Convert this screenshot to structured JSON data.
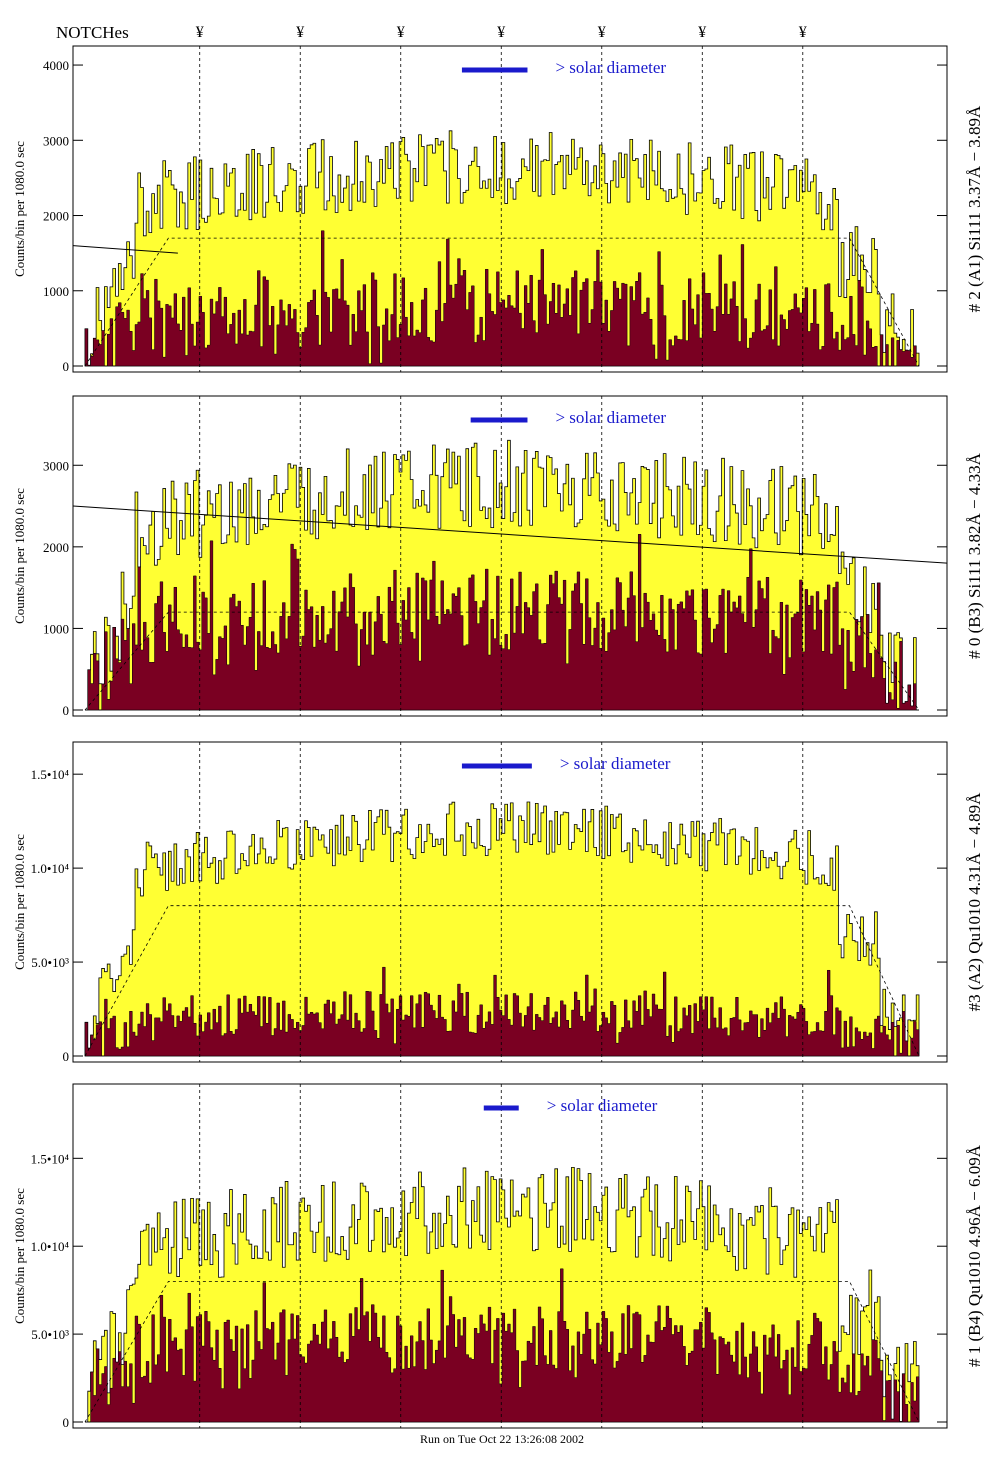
{
  "header": {
    "notches_label": "NOTCHes",
    "notch_marker": "¥"
  },
  "footer": {
    "run_text": "Run on Tue Oct 22 13:26:08 2002"
  },
  "colors": {
    "yellow_fill": "#ffff33",
    "dark_fill": "#7a0022",
    "solar_bar": "#1a1acc",
    "solar_text": "#1a1acc"
  },
  "chart_data": [
    {
      "type": "area",
      "id": "panel_a1",
      "title_right": "# 2 (A1) Si111  3.37Å − 3.89Å",
      "ylabel": "Counts/bin per   1080.0 sec",
      "annotation": "> solar diameter",
      "ylim": [
        0,
        4200
      ],
      "yticks": [
        0,
        1000,
        2000,
        3000,
        4000
      ],
      "ytick_labels": [
        "0",
        "1000",
        "2000",
        "3000",
        "4000"
      ],
      "notch_x": [
        0.145,
        0.26,
        0.375,
        0.49,
        0.605,
        0.72,
        0.835
      ],
      "solar_bar_range": [
        0.445,
        0.52
      ],
      "upper_base": 2300,
      "upper_amp": 500,
      "lower_base": 500,
      "lower_amp": 500,
      "dashed_level": 1700,
      "trend_line": [
        [
          0,
          1600
        ],
        [
          0.12,
          1500
        ]
      ]
    },
    {
      "type": "area",
      "id": "panel_b3",
      "title_right": "# 0 (B3) Si111  3.82Å − 4.33Å",
      "ylabel": "Counts/bin per   1080.0 sec",
      "annotation": "> solar diameter",
      "ylim": [
        0,
        3800
      ],
      "yticks": [
        0,
        1000,
        2000,
        3000
      ],
      "ytick_labels": [
        "0",
        "1000",
        "2000",
        "3000"
      ],
      "notch_x": [
        0.145,
        0.26,
        0.375,
        0.49,
        0.605,
        0.72,
        0.835
      ],
      "solar_bar_range": [
        0.455,
        0.52
      ],
      "upper_base": 2400,
      "upper_amp": 550,
      "lower_base": 900,
      "lower_amp": 500,
      "dashed_level": 1200,
      "trend_line": [
        [
          0,
          2500
        ],
        [
          1,
          1800
        ]
      ]
    },
    {
      "type": "area",
      "id": "panel_a2",
      "title_right": "#3 (A2) Qu1010  4.31Å − 4.89Å",
      "ylabel": "Counts/bin per   1080.0 sec",
      "annotation": "> solar diameter",
      "ylim": [
        0,
        16500
      ],
      "yticks": [
        0,
        5000,
        10000,
        15000
      ],
      "ytick_labels": [
        "0",
        "5.0•10³",
        "1.0•10⁴",
        "1.5•10⁴"
      ],
      "notch_x": [
        0.145,
        0.26,
        0.375,
        0.49,
        0.605,
        0.72,
        0.835
      ],
      "solar_bar_range": [
        0.445,
        0.525
      ],
      "upper_base": 10500,
      "upper_amp": 1500,
      "lower_base": 1600,
      "lower_amp": 1200,
      "dashed_level": 8000,
      "trend_line": []
    },
    {
      "type": "area",
      "id": "panel_b4",
      "title_right": "# 1 (B4) Qu1010 4.96Å − 6.09Å",
      "ylabel": "Counts/bin per   1080.0 sec",
      "annotation": "> solar diameter",
      "ylim": [
        0,
        19000
      ],
      "yticks": [
        0,
        5000,
        10000,
        15000
      ],
      "ytick_labels": [
        "0",
        "5.0•10³",
        "1.0•10⁴",
        "1.5•10⁴"
      ],
      "notch_x": [
        0.145,
        0.26,
        0.375,
        0.49,
        0.605,
        0.72,
        0.835
      ],
      "solar_bar_range": [
        0.47,
        0.51
      ],
      "upper_base": 10500,
      "upper_amp": 2500,
      "lower_base": 3500,
      "lower_amp": 2000,
      "dashed_level": 8000,
      "trend_line": []
    }
  ]
}
